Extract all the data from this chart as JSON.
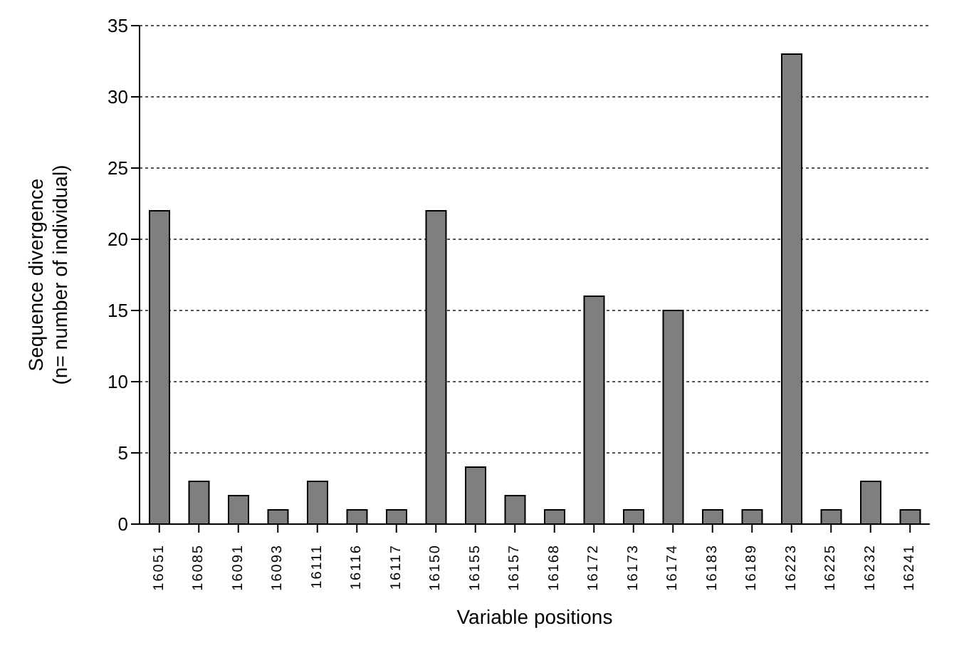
{
  "chart_data": {
    "type": "bar",
    "xlabel": "Variable positions",
    "ylabel": "Sequence divergence\n(n= number of individual)",
    "categories": [
      "16051",
      "16085",
      "16091",
      "16093",
      "16111",
      "16116",
      "16117",
      "16150",
      "16155",
      "16157",
      "16168",
      "16172",
      "16173",
      "16174",
      "16183",
      "16189",
      "16223",
      "16225",
      "16232",
      "16241"
    ],
    "values": [
      22,
      3,
      2,
      1,
      3,
      1,
      1,
      22,
      4,
      2,
      1,
      16,
      1,
      15,
      1,
      1,
      33,
      1,
      3,
      1
    ],
    "color": "#7f7f7f",
    "ylim": [
      0,
      35
    ],
    "yticks": [
      0,
      5,
      10,
      15,
      20,
      25,
      30,
      35
    ],
    "grid": "y"
  }
}
